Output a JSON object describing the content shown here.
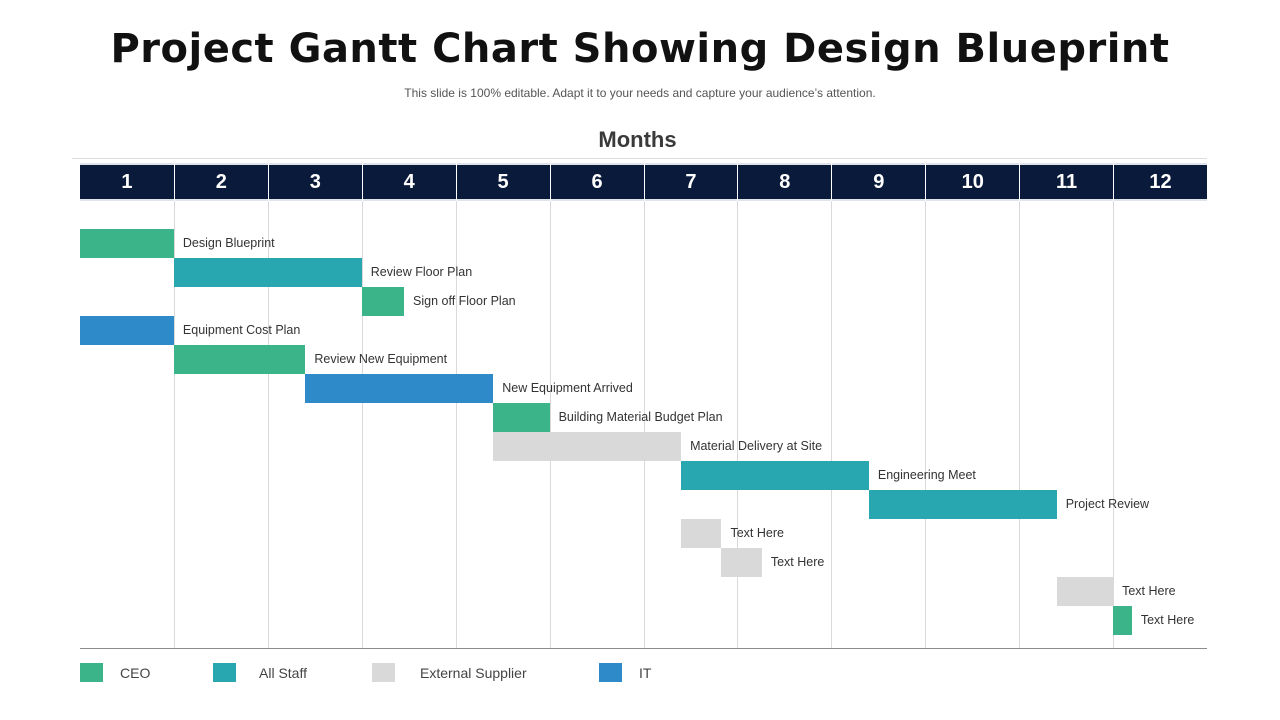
{
  "title": "Project Gantt Chart Showing Design Blueprint",
  "subtitle": "This slide is 100% editable. Adapt it to your needs and capture your audience’s attention.",
  "chart_data": {
    "type": "gantt",
    "axis_title": "Months",
    "months": [
      "1",
      "2",
      "3",
      "4",
      "5",
      "6",
      "7",
      "8",
      "9",
      "10",
      "11",
      "12"
    ],
    "x_range": [
      1,
      13
    ],
    "tasks": [
      {
        "label": "Design Blueprint",
        "start": 1.0,
        "end": 2.0,
        "category": "CEO"
      },
      {
        "label": "Review  Floor Plan",
        "start": 2.0,
        "end": 4.0,
        "category": "All Staff"
      },
      {
        "label": "Sign off Floor Plan",
        "start": 4.0,
        "end": 4.45,
        "category": "CEO"
      },
      {
        "label": "Equipment Cost Plan",
        "start": 1.0,
        "end": 2.0,
        "category": "IT"
      },
      {
        "label": "Review  New Equipment",
        "start": 2.0,
        "end": 3.4,
        "category": "CEO"
      },
      {
        "label": "New Equipment Arrived",
        "start": 3.4,
        "end": 5.4,
        "category": "IT"
      },
      {
        "label": "Building Material Budget Plan",
        "start": 5.4,
        "end": 6.0,
        "category": "CEO"
      },
      {
        "label": "Material Delivery  at Site",
        "start": 5.4,
        "end": 7.4,
        "category": "External Supplier"
      },
      {
        "label": "Engineering Meet",
        "start": 7.4,
        "end": 9.4,
        "category": "All Staff"
      },
      {
        "label": "Project Review",
        "start": 9.4,
        "end": 11.4,
        "category": "All Staff"
      },
      {
        "label": "Text Here",
        "start": 7.4,
        "end": 7.83,
        "category": "External Supplier"
      },
      {
        "label": "Text Here",
        "start": 7.83,
        "end": 8.26,
        "category": "External Supplier"
      },
      {
        "label": "Text Here",
        "start": 11.4,
        "end": 12.0,
        "category": "External Supplier"
      },
      {
        "label": "Text Here",
        "start": 12.0,
        "end": 12.2,
        "category": "CEO"
      }
    ],
    "legend": [
      {
        "name": "CEO",
        "color": "#3cb48a"
      },
      {
        "name": "All Staff",
        "color": "#29a7b1"
      },
      {
        "name": "External Supplier",
        "color": "#d9d9d9"
      },
      {
        "name": "IT",
        "color": "#2e8ac8"
      }
    ],
    "legend_position": "bottom",
    "grid": true
  }
}
